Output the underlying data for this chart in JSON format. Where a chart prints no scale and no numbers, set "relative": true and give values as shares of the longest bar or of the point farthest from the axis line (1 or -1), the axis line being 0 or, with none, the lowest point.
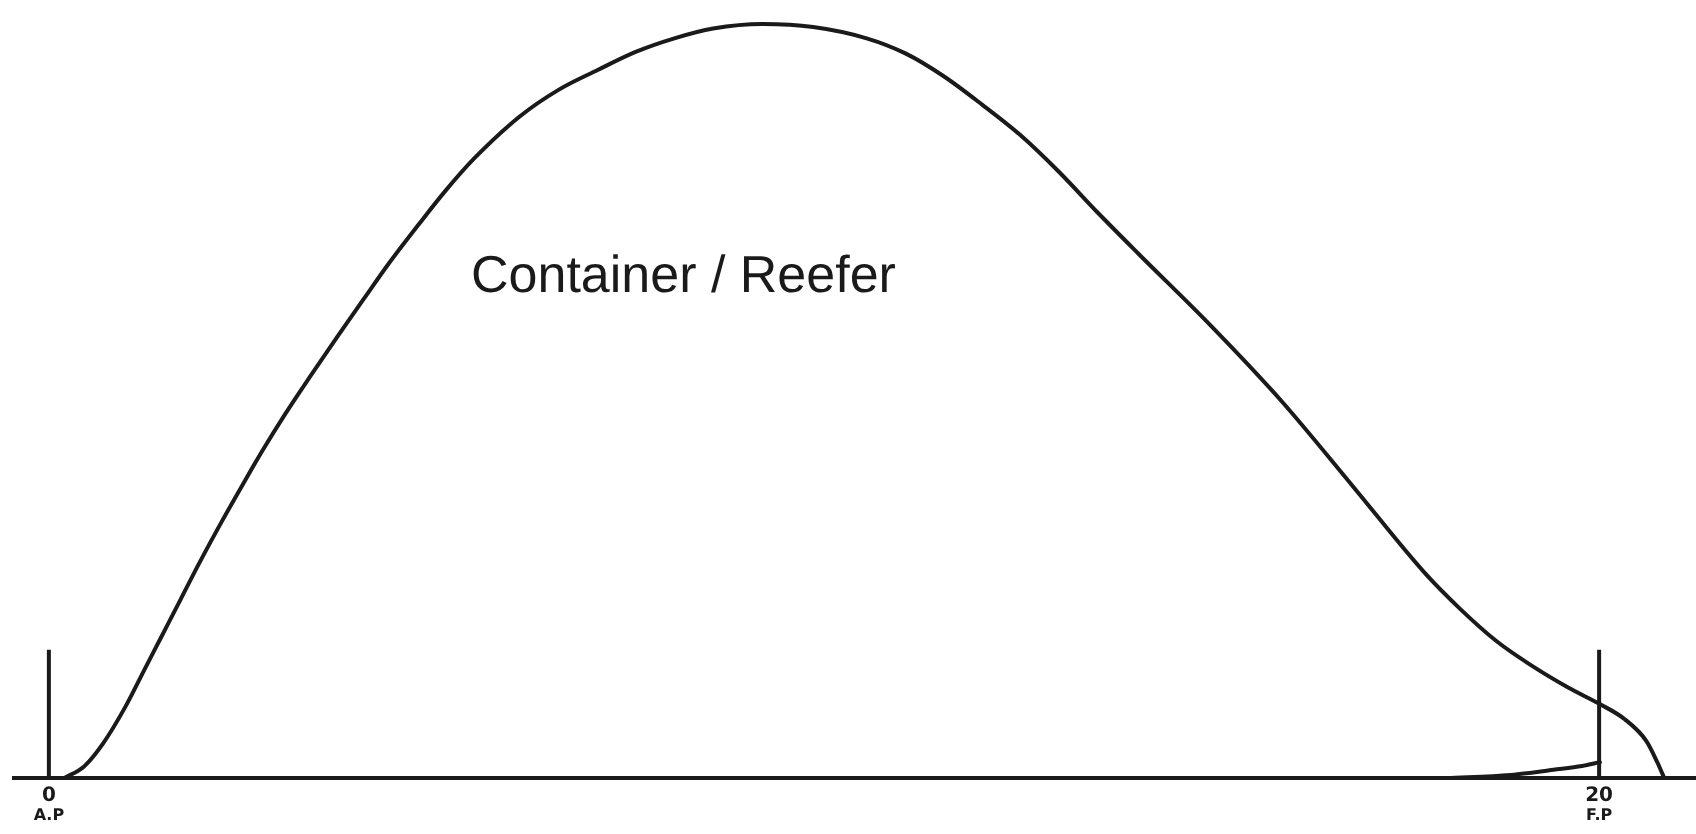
{
  "chart_data": {
    "type": "line",
    "relative": true,
    "series": [
      {
        "name": "Container / Reefer",
        "color": "#1a1a1a",
        "x": [
          0.2,
          0.45,
          0.7,
          0.99,
          1.23,
          1.45,
          1.7,
          1.94,
          2.23,
          2.5,
          2.76,
          3.05,
          3.38,
          3.72,
          4.06,
          4.39,
          4.77,
          5.11,
          5.49,
          6.07,
          6.58,
          7.08,
          7.57,
          8.07,
          8.57,
          9.21,
          9.86,
          10.55,
          11.05,
          11.54,
          12.04,
          12.54,
          13.03,
          13.53,
          14.06,
          14.99,
          15.91,
          16.83,
          17.75,
          18.21,
          18.67,
          19.13,
          19.6,
          20.01,
          20.33,
          20.61,
          20.75,
          20.84
        ],
        "values": [
          0,
          0.015,
          0.046,
          0.095,
          0.143,
          0.187,
          0.237,
          0.285,
          0.34,
          0.389,
          0.435,
          0.483,
          0.534,
          0.585,
          0.635,
          0.683,
          0.734,
          0.778,
          0.822,
          0.877,
          0.913,
          0.939,
          0.963,
          0.981,
          0.994,
          1.0,
          0.996,
          0.981,
          0.961,
          0.931,
          0.893,
          0.852,
          0.804,
          0.75,
          0.695,
          0.6,
          0.499,
          0.386,
          0.272,
          0.224,
          0.182,
          0.149,
          0.12,
          0.098,
          0.078,
          0.049,
          0.021,
          0
        ]
      },
      {
        "color": "#1a1a1a",
        "x": [
          18.03,
          18.86,
          19.41,
          19.78,
          20.01
        ],
        "values": [
          0,
          0.004,
          0.011,
          0.016,
          0.021
        ]
      }
    ],
    "xlim": [
      -0.45,
      21.25
    ],
    "xticks": [
      0,
      20
    ],
    "ref_lines": [
      {
        "axis": "x",
        "value": 0,
        "label": "A.P"
      },
      {
        "axis": "x",
        "value": 20,
        "label": "F.P"
      }
    ],
    "marker": "none",
    "line_style": "solid"
  }
}
